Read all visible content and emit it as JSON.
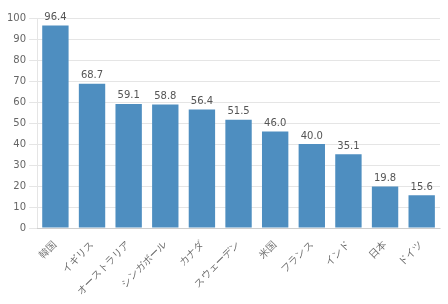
{
  "chart_data": {
    "type": "bar",
    "categories": [
      "韓国",
      "イギリス",
      "オーストラリア",
      "シンガポール",
      "カナダ",
      "スウェーデン",
      "米国",
      "フランス",
      "インド",
      "日本",
      "ドイツ"
    ],
    "values": [
      96.4,
      68.7,
      59.1,
      58.8,
      56.4,
      51.5,
      46.0,
      40.0,
      35.1,
      19.8,
      15.6
    ],
    "value_labels": [
      "96.4",
      "68.7",
      "59.1",
      "58.8",
      "56.4",
      "51.5",
      "46.0",
      "40.0",
      "35.1",
      "19.8",
      "15.6"
    ],
    "data_labels": true,
    "color": "#4e8ec0",
    "ylim": [
      0,
      100
    ],
    "yticks": [
      0,
      10,
      20,
      30,
      40,
      50,
      60,
      70,
      80,
      90,
      100
    ],
    "grid": true
  }
}
